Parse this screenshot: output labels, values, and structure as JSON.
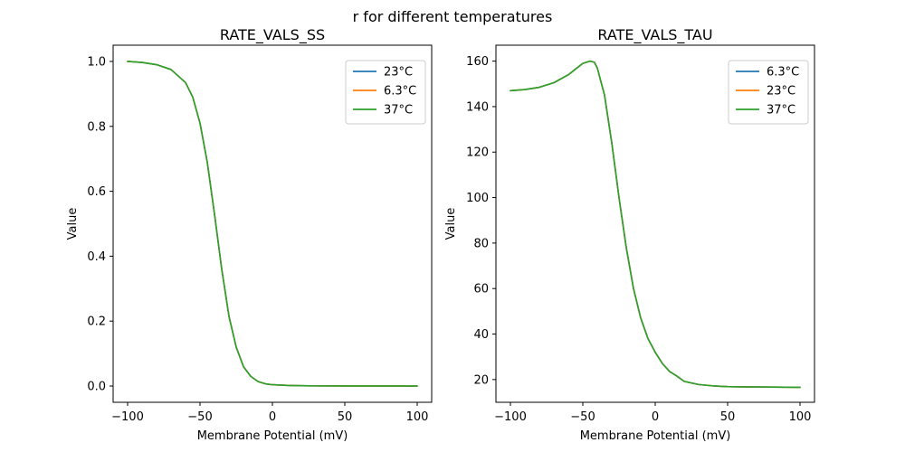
{
  "figure": {
    "suptitle": "r for different temperatures"
  },
  "chart_data": [
    {
      "type": "line",
      "title": "RATE_VALS_SS",
      "xlabel": "Membrane Potential (mV)",
      "ylabel": "Value",
      "xlim": [
        -110,
        110
      ],
      "ylim": [
        -0.05,
        1.05
      ],
      "xticks": [
        -100,
        -50,
        0,
        50,
        100
      ],
      "yticks": [
        0.0,
        0.2,
        0.4,
        0.6,
        0.8,
        1.0
      ],
      "ytick_decimals": 1,
      "legend": "top-right",
      "grid": false,
      "series": [
        {
          "name": "23°C",
          "color": "#1f77b4",
          "x": [
            -100,
            -90,
            -80,
            -70,
            -60,
            -55,
            -50,
            -45,
            -40,
            -35,
            -30,
            -25,
            -20,
            -15,
            -10,
            -5,
            0,
            10,
            20,
            30,
            50,
            100
          ],
          "y": [
            1.0,
            0.997,
            0.99,
            0.975,
            0.935,
            0.89,
            0.81,
            0.69,
            0.53,
            0.36,
            0.215,
            0.12,
            0.06,
            0.03,
            0.014,
            0.007,
            0.004,
            0.002,
            0.001,
            0.0005,
            0.0002,
            0.0
          ]
        },
        {
          "name": "6.3°C",
          "color": "#ff7f0e",
          "x": [
            -100,
            -90,
            -80,
            -70,
            -60,
            -55,
            -50,
            -45,
            -40,
            -35,
            -30,
            -25,
            -20,
            -15,
            -10,
            -5,
            0,
            10,
            20,
            30,
            50,
            100
          ],
          "y": [
            1.0,
            0.997,
            0.99,
            0.975,
            0.935,
            0.89,
            0.81,
            0.69,
            0.53,
            0.36,
            0.215,
            0.12,
            0.06,
            0.03,
            0.014,
            0.007,
            0.004,
            0.002,
            0.001,
            0.0005,
            0.0002,
            0.0
          ]
        },
        {
          "name": "37°C",
          "color": "#2ca02c",
          "x": [
            -100,
            -90,
            -80,
            -70,
            -60,
            -55,
            -50,
            -45,
            -40,
            -35,
            -30,
            -25,
            -20,
            -15,
            -10,
            -5,
            0,
            10,
            20,
            30,
            50,
            100
          ],
          "y": [
            1.0,
            0.997,
            0.99,
            0.975,
            0.935,
            0.89,
            0.81,
            0.69,
            0.53,
            0.36,
            0.215,
            0.12,
            0.06,
            0.03,
            0.014,
            0.007,
            0.004,
            0.002,
            0.001,
            0.0005,
            0.0002,
            0.0
          ]
        }
      ]
    },
    {
      "type": "line",
      "title": "RATE_VALS_TAU",
      "xlabel": "Membrane Potential (mV)",
      "ylabel": "Value",
      "xlim": [
        -110,
        110
      ],
      "ylim": [
        10,
        167
      ],
      "xticks": [
        -100,
        -50,
        0,
        50,
        100
      ],
      "yticks": [
        20,
        40,
        60,
        80,
        100,
        120,
        140,
        160
      ],
      "ytick_decimals": 0,
      "legend": "top-right",
      "grid": false,
      "series": [
        {
          "name": "6.3°C",
          "color": "#1f77b4",
          "x": [
            -100,
            -90,
            -80,
            -70,
            -60,
            -55,
            -50,
            -45,
            -42,
            -40,
            -35,
            -30,
            -25,
            -20,
            -15,
            -10,
            -5,
            0,
            5,
            10,
            15,
            20,
            30,
            40,
            50,
            60,
            80,
            100
          ],
          "y": [
            147,
            147.5,
            148.5,
            150.5,
            154,
            156.5,
            159,
            160,
            159.5,
            157,
            145,
            124,
            100,
            78,
            60,
            47,
            38,
            32,
            27,
            23.5,
            21.5,
            19.2,
            17.8,
            17.2,
            16.9,
            16.8,
            16.7,
            16.6
          ]
        },
        {
          "name": "23°C",
          "color": "#ff7f0e",
          "x": [
            -100,
            -90,
            -80,
            -70,
            -60,
            -55,
            -50,
            -45,
            -42,
            -40,
            -35,
            -30,
            -25,
            -20,
            -15,
            -10,
            -5,
            0,
            5,
            10,
            15,
            20,
            30,
            40,
            50,
            60,
            80,
            100
          ],
          "y": [
            147,
            147.5,
            148.5,
            150.5,
            154,
            156.5,
            159,
            160,
            159.5,
            157,
            145,
            124,
            100,
            78,
            60,
            47,
            38,
            32,
            27,
            23.5,
            21.5,
            19.2,
            17.8,
            17.2,
            16.9,
            16.8,
            16.7,
            16.6
          ]
        },
        {
          "name": "37°C",
          "color": "#2ca02c",
          "x": [
            -100,
            -90,
            -80,
            -70,
            -60,
            -55,
            -50,
            -45,
            -42,
            -40,
            -35,
            -30,
            -25,
            -20,
            -15,
            -10,
            -5,
            0,
            5,
            10,
            15,
            20,
            30,
            40,
            50,
            60,
            80,
            100
          ],
          "y": [
            147,
            147.5,
            148.5,
            150.5,
            154,
            156.5,
            159,
            160,
            159.5,
            157,
            145,
            124,
            100,
            78,
            60,
            47,
            38,
            32,
            27,
            23.5,
            21.5,
            19.2,
            17.8,
            17.2,
            16.9,
            16.8,
            16.7,
            16.6
          ]
        }
      ]
    }
  ]
}
